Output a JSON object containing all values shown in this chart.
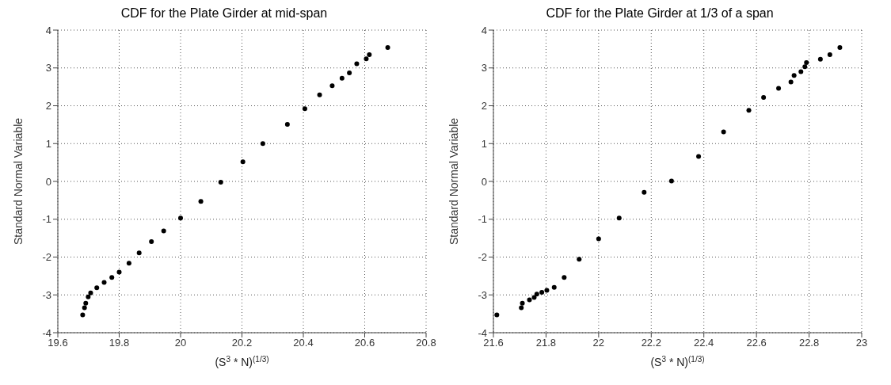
{
  "chart_data": [
    {
      "type": "scatter",
      "title": "CDF for the Plate Girder at mid-span",
      "xlabel": "(S$^{3}$ * N)$^{(1/3)}$",
      "ylabel": "Standard Normal Variable",
      "x": [
        19.681,
        19.687,
        19.691,
        19.699,
        19.707,
        19.727,
        19.751,
        19.776,
        19.8,
        19.832,
        19.865,
        19.905,
        19.945,
        20.0,
        20.066,
        20.131,
        20.203,
        20.268,
        20.348,
        20.405,
        20.453,
        20.494,
        20.526,
        20.55,
        20.574,
        20.605,
        20.615,
        20.675
      ],
      "series": [
        {
          "color": "#000000",
          "values": [
            -3.53,
            -3.34,
            -3.22,
            -3.05,
            -2.95,
            -2.81,
            -2.67,
            -2.54,
            -2.4,
            -2.16,
            -1.89,
            -1.59,
            -1.31,
            -0.97,
            -0.53,
            -0.02,
            0.52,
            1.0,
            1.51,
            1.92,
            2.29,
            2.53,
            2.73,
            2.87,
            3.11,
            3.24,
            3.35,
            3.54
          ]
        }
      ],
      "xlim": [
        19.6,
        20.8
      ],
      "xticks": [
        19.6,
        19.8,
        20,
        20.2,
        20.4,
        20.6,
        20.8
      ],
      "ylim": [
        -4,
        4
      ],
      "yticks": [
        -4,
        -3,
        -2,
        -1,
        0,
        1,
        2,
        3,
        4
      ],
      "grid": true,
      "marker": "circle"
    },
    {
      "type": "scatter",
      "title": "CDF for the Plate Girder at 1/3 of a span",
      "xlabel": "(S$^{3}$ * N)$^{(1/3)}$",
      "ylabel": "Standard Normal Variable",
      "x": [
        21.613,
        21.706,
        21.71,
        21.737,
        21.755,
        21.765,
        21.784,
        21.803,
        21.831,
        21.869,
        21.926,
        22.0,
        22.078,
        22.173,
        22.277,
        22.38,
        22.475,
        22.571,
        22.627,
        22.684,
        22.731,
        22.743,
        22.769,
        22.784,
        22.79,
        22.843,
        22.879,
        22.917
      ],
      "series": [
        {
          "color": "#000000",
          "values": [
            -3.53,
            -3.34,
            -3.22,
            -3.13,
            -3.07,
            -2.98,
            -2.93,
            -2.88,
            -2.8,
            -2.54,
            -2.06,
            -1.52,
            -0.97,
            -0.29,
            0.01,
            0.66,
            1.31,
            1.88,
            2.22,
            2.46,
            2.63,
            2.8,
            2.9,
            3.03,
            3.14,
            3.23,
            3.35,
            3.54
          ]
        }
      ],
      "xlim": [
        21.6,
        23
      ],
      "xticks": [
        21.6,
        21.8,
        22,
        22.2,
        22.4,
        22.6,
        22.8,
        23
      ],
      "ylim": [
        -4,
        4
      ],
      "yticks": [
        -4,
        -3,
        -2,
        -1,
        0,
        1,
        2,
        3,
        4
      ],
      "grid": true,
      "marker": "circle"
    }
  ]
}
